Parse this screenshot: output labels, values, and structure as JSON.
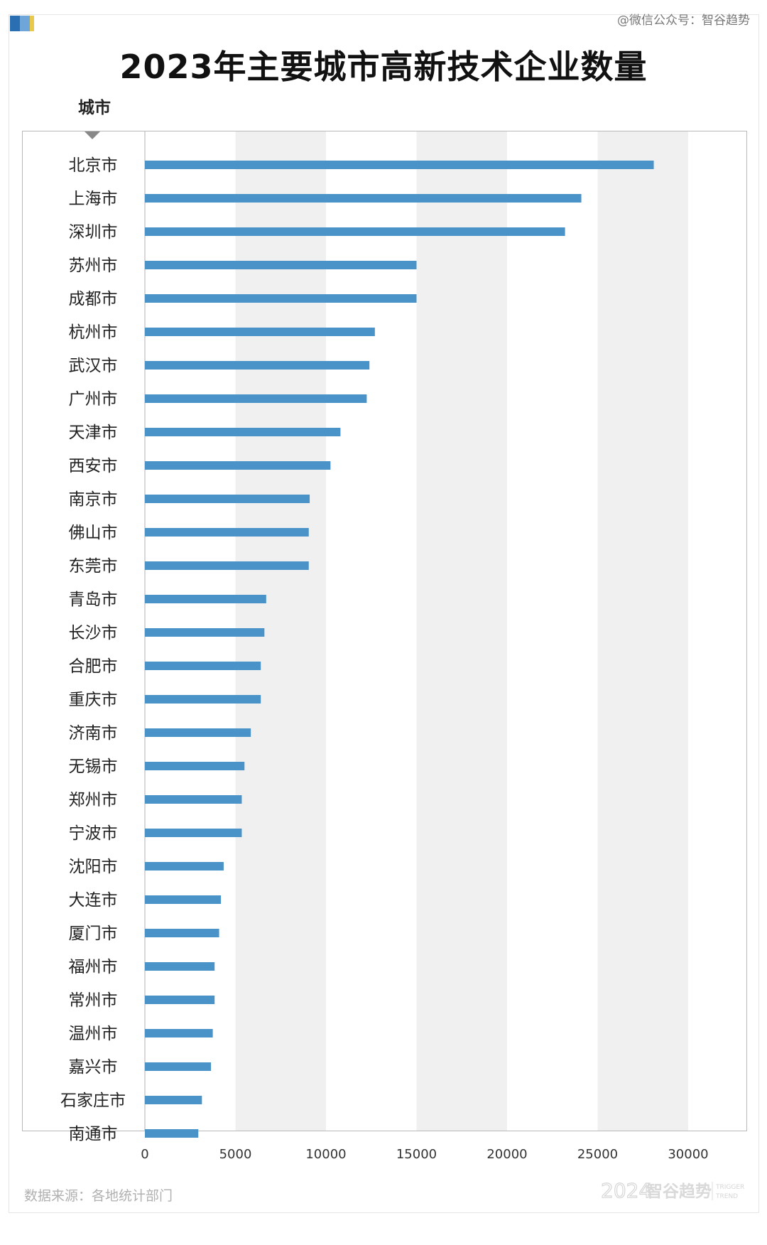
{
  "watermark_top": "@微信公众号：智谷趋势",
  "footer": {
    "source": "数据来源：各地统计部门",
    "brand_year": "2024",
    "brand_name": "智谷趋势",
    "brand_en_1": "TRIGGER",
    "brand_en_2": "TREND"
  },
  "colors": {
    "bar": "#4a93c9",
    "band": "#f0f0f0",
    "axis": "#b0b0b0"
  },
  "chart_data": {
    "type": "bar",
    "orientation": "horizontal",
    "title": "2023年主要城市高新技术企业数量",
    "category_header": "城市",
    "xlim": [
      0,
      30000
    ],
    "xticks": [
      0,
      5000,
      10000,
      15000,
      20000,
      25000,
      30000
    ],
    "categories": [
      "北京市",
      "上海市",
      "深圳市",
      "苏州市",
      "成都市",
      "杭州市",
      "武汉市",
      "广州市",
      "天津市",
      "西安市",
      "南京市",
      "佛山市",
      "东莞市",
      "青岛市",
      "长沙市",
      "合肥市",
      "重庆市",
      "济南市",
      "无锡市",
      "郑州市",
      "宁波市",
      "沈阳市",
      "大连市",
      "厦门市",
      "福州市",
      "常州市",
      "温州市",
      "嘉兴市",
      "石家庄市",
      "南通市"
    ],
    "values": [
      28100,
      24100,
      23200,
      15000,
      15000,
      12700,
      12400,
      12250,
      10800,
      10250,
      9100,
      9050,
      9050,
      6700,
      6600,
      6400,
      6400,
      5850,
      5500,
      5350,
      5350,
      4350,
      4200,
      4100,
      3850,
      3850,
      3750,
      3650,
      3150,
      2950
    ]
  }
}
